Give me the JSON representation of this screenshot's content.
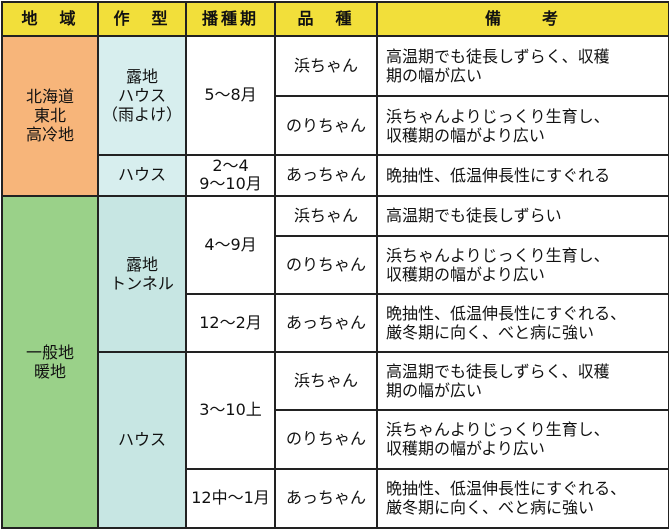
{
  "headers": {
    "region": "地　域",
    "cropping": "作　型",
    "sowing": "播種期",
    "variety": "品　種",
    "notes": "備　　考"
  },
  "regions": {
    "north": [
      "北海道",
      "東北",
      "高冷地"
    ],
    "general": [
      "一般地",
      "暖地"
    ]
  },
  "cropping_types": {
    "open_house_rain": [
      "露地",
      "ハウス",
      "（雨よけ）"
    ],
    "house_1": "ハウス",
    "open_tunnel": [
      "露地",
      "トンネル"
    ],
    "house_2": "ハウス"
  },
  "sowing": {
    "s1": "5～8月",
    "s2": [
      "2～4",
      "9～10月"
    ],
    "s3": "4～9月",
    "s4": "12～2月",
    "s5": "3～10上",
    "s6": "12中～1月"
  },
  "rows": [
    {
      "variety": "浜ちゃん",
      "note": [
        "高温期でも徒長しずらく、収穫",
        "期の幅が広い"
      ]
    },
    {
      "variety": "のりちゃん",
      "note": [
        "浜ちゃんよりじっくり生育し、",
        "収穫期の幅がより広い"
      ]
    },
    {
      "variety": "あっちゃん",
      "note": [
        "晩抽性、低温伸長性にすぐれる"
      ]
    },
    {
      "variety": "浜ちゃん",
      "note": [
        "高温期でも徒長しずらい"
      ]
    },
    {
      "variety": "のりちゃん",
      "note": [
        "浜ちゃんよりじっくり生育し、",
        "収穫期の幅がより広い"
      ]
    },
    {
      "variety": "あっちゃん",
      "note": [
        "晩抽性、低温伸長性にすぐれる、",
        "厳冬期に向く、べと病に強い"
      ]
    },
    {
      "variety": "浜ちゃん",
      "note": [
        "高温期でも徒長しずらく、収穫",
        "期の幅が広い"
      ]
    },
    {
      "variety": "のりちゃん",
      "note": [
        "浜ちゃんよりじっくり生育し、",
        "収穫期の幅がより広い"
      ]
    },
    {
      "variety": "あっちゃん",
      "note": [
        "晩抽性、低温伸長性にすぐれる、",
        "厳冬期に向く、べと病に強い"
      ]
    }
  ],
  "colors": {
    "header_bg": "#f2df3a",
    "north_region_bg": "#f7b57a",
    "general_region_bg": "#9ad189",
    "cropping_bg": "#d7eeee"
  }
}
